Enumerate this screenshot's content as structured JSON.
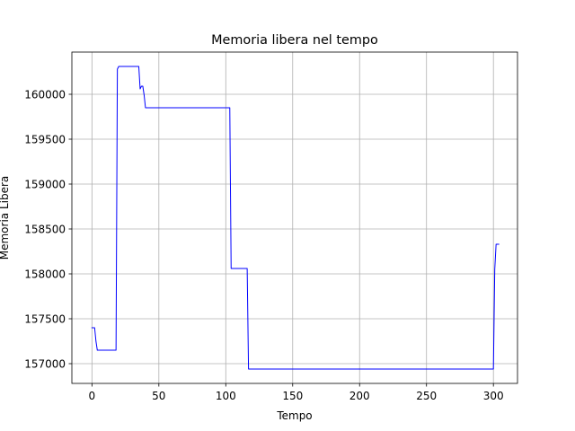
{
  "chart_data": {
    "type": "line",
    "title": "Memoria libera nel tempo",
    "xlabel": "Tempo",
    "ylabel": "Memoria Libera",
    "xlim": [
      -15,
      318
    ],
    "ylim": [
      156780,
      160470
    ],
    "xticks": [
      0,
      50,
      100,
      150,
      200,
      250,
      300
    ],
    "yticks": [
      157000,
      157500,
      158000,
      158500,
      159000,
      159500,
      160000
    ],
    "grid": true,
    "series": [
      {
        "color": "#0000ff",
        "x": [
          0,
          2,
          3,
          4,
          18,
          19,
          20,
          35,
          36,
          37,
          38,
          39,
          40,
          102,
          103,
          104,
          116,
          117,
          118,
          300,
          301,
          302,
          304
        ],
        "y": [
          157400,
          157400,
          157250,
          157150,
          157150,
          160280,
          160310,
          160310,
          160060,
          160090,
          160090,
          159990,
          159850,
          159850,
          159850,
          158060,
          158060,
          156940,
          156940,
          156940,
          158050,
          158330,
          158330
        ]
      }
    ]
  }
}
